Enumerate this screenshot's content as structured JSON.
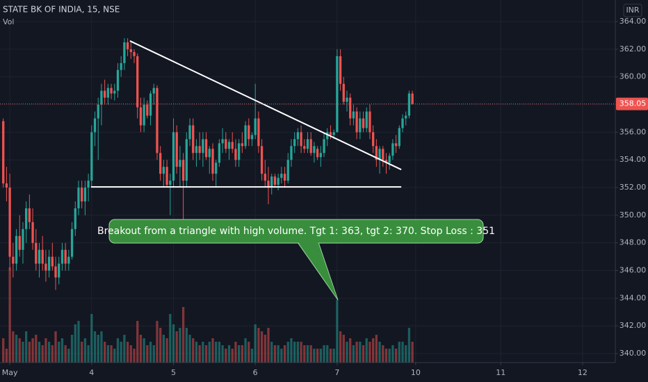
{
  "chart_data": {
    "type": "candlestick",
    "title": "STATE BK OF INDIA, 15, NSE",
    "volume_label": "Vol",
    "currency": "INR",
    "up_color": "#26a69a",
    "down_color": "#ef5350",
    "xlim": [
      -1,
      187
    ],
    "ylim": [
      339.35,
      365.56
    ],
    "xticks": [
      {
        "value": 2,
        "label": "May"
      },
      {
        "value": 27,
        "label": "4"
      },
      {
        "value": 52,
        "label": "5"
      },
      {
        "value": 77,
        "label": "6"
      },
      {
        "value": 102,
        "label": "7"
      },
      {
        "value": 126,
        "label": "10"
      },
      {
        "value": 152,
        "label": "11"
      },
      {
        "value": 177,
        "label": "12"
      }
    ],
    "yticks": [
      {
        "value": 340,
        "label": "340.00"
      },
      {
        "value": 342,
        "label": "342.00"
      },
      {
        "value": 344,
        "label": "344.00"
      },
      {
        "value": 346,
        "label": "346.00"
      },
      {
        "value": 348,
        "label": "348.00"
      },
      {
        "value": 350,
        "label": "350.00"
      },
      {
        "value": 352,
        "label": "352.00"
      },
      {
        "value": 354,
        "label": "354.00"
      },
      {
        "value": 356,
        "label": "356.00"
      },
      {
        "value": 358,
        "label": "358.00"
      },
      {
        "value": 360,
        "label": "360.00"
      },
      {
        "value": 362,
        "label": "362.00"
      },
      {
        "value": 364,
        "label": "364.00"
      }
    ],
    "grid": true,
    "last_price": 358.05,
    "annotation": "Breakout from a triangle with high volume. Tgt 1: 363, tgt 2: 370. Stop Loss : 351",
    "lines": [
      {
        "x": [
          38.7,
          121.6
        ],
        "y": [
          362.6,
          353.3
        ]
      },
      {
        "x": [
          26.8,
          121.6
        ],
        "y": [
          352.05,
          352.05
        ]
      }
    ],
    "candles": [
      [
        356.8,
        357,
        352,
        352.3,
        35
      ],
      [
        352.3,
        353.5,
        351,
        352,
        20
      ],
      [
        352,
        353,
        346,
        347,
        137
      ],
      [
        347,
        348,
        345.5,
        346.5,
        45
      ],
      [
        346.5,
        349,
        346,
        348.5,
        40
      ],
      [
        348.5,
        350,
        347,
        347.5,
        35
      ],
      [
        347.5,
        349.5,
        346.5,
        349,
        30
      ],
      [
        349,
        351,
        348,
        350.5,
        45
      ],
      [
        350.5,
        351.5,
        349,
        349.5,
        30
      ],
      [
        349.5,
        350.5,
        347.5,
        348,
        35
      ],
      [
        348,
        349,
        346,
        346.5,
        40
      ],
      [
        346.5,
        348,
        345.5,
        347.5,
        30
      ],
      [
        347.5,
        348.5,
        346,
        346.5,
        25
      ],
      [
        346.5,
        347.5,
        345.2,
        346,
        35
      ],
      [
        346,
        347.5,
        345.5,
        347,
        30
      ],
      [
        347,
        348,
        346,
        346.3,
        25
      ],
      [
        346.3,
        347,
        344.6,
        345.5,
        45
      ],
      [
        345.5,
        347,
        345,
        346.5,
        30
      ],
      [
        346.5,
        348,
        346,
        347.5,
        35
      ],
      [
        347.5,
        348,
        346,
        346.5,
        25
      ],
      [
        346.5,
        347.5,
        346,
        347,
        20
      ],
      [
        347,
        349.5,
        346.8,
        349,
        40
      ],
      [
        349,
        351,
        348.5,
        350.5,
        55
      ],
      [
        350.5,
        352.5,
        350,
        352,
        60
      ],
      [
        352,
        352.5,
        350.5,
        351,
        30
      ],
      [
        351,
        352.5,
        350,
        352,
        35
      ],
      [
        352,
        353,
        351,
        352.5,
        25
      ],
      [
        352.5,
        356.5,
        352,
        356,
        70
      ],
      [
        356,
        357.5,
        355,
        357,
        45
      ],
      [
        357,
        358.5,
        354,
        358,
        40
      ],
      [
        358,
        359.5,
        356.5,
        359,
        45
      ],
      [
        359,
        359.8,
        358,
        358.5,
        30
      ],
      [
        358.5,
        359.5,
        358,
        359.2,
        25
      ],
      [
        359.2,
        359.5,
        358.4,
        358.8,
        25
      ],
      [
        358.8,
        359.5,
        358.3,
        359,
        20
      ],
      [
        359,
        361,
        358.5,
        360.5,
        35
      ],
      [
        360.5,
        361.5,
        360,
        361,
        30
      ],
      [
        361,
        362.8,
        360.5,
        362.5,
        40
      ],
      [
        362.5,
        362.8,
        361.5,
        362,
        30
      ],
      [
        362,
        362.5,
        361.3,
        361.8,
        25
      ],
      [
        361.8,
        362,
        361,
        361.5,
        20
      ],
      [
        361.5,
        361.7,
        357,
        357.8,
        60
      ],
      [
        357.8,
        358.5,
        356,
        356.5,
        40
      ],
      [
        356.5,
        358.5,
        356,
        358,
        35
      ],
      [
        358,
        358.3,
        357,
        357.2,
        25
      ],
      [
        357.2,
        359,
        356.5,
        358.8,
        30
      ],
      [
        358.8,
        359.5,
        358,
        359.2,
        25
      ],
      [
        359.2,
        359.4,
        354,
        354.5,
        60
      ],
      [
        354.5,
        355,
        352.5,
        353,
        50
      ],
      [
        353,
        354,
        352,
        353.5,
        40
      ],
      [
        353.5,
        354,
        352,
        352.2,
        35
      ],
      [
        352.2,
        353,
        350,
        352.5,
        70
      ],
      [
        352.5,
        357,
        352,
        356,
        55
      ],
      [
        356,
        356.5,
        353,
        353.5,
        45
      ],
      [
        353.5,
        355,
        352,
        354,
        50
      ],
      [
        354,
        354.5,
        348,
        352.5,
        80
      ],
      [
        352.5,
        356,
        352,
        355.5,
        50
      ],
      [
        355.5,
        357,
        355,
        356.5,
        40
      ],
      [
        356.5,
        357,
        354,
        354.5,
        35
      ],
      [
        354.5,
        355.5,
        353.5,
        355,
        30
      ],
      [
        355,
        356,
        354,
        354.5,
        25
      ],
      [
        354.5,
        356,
        353.5,
        355.5,
        30
      ],
      [
        355.5,
        356,
        354,
        354.2,
        25
      ],
      [
        354.2,
        355,
        353,
        354.8,
        30
      ],
      [
        354.8,
        355.2,
        352.5,
        353,
        35
      ],
      [
        353,
        354,
        352,
        353.8,
        30
      ],
      [
        353.8,
        355.5,
        353.5,
        355.2,
        30
      ],
      [
        355.2,
        356.3,
        354.5,
        355.5,
        25
      ],
      [
        355.5,
        356,
        354.5,
        354.8,
        20
      ],
      [
        354.8,
        355.5,
        354,
        355.3,
        25
      ],
      [
        355.3,
        356,
        354.5,
        354.8,
        20
      ],
      [
        354.8,
        355.5,
        353.5,
        354,
        30
      ],
      [
        354,
        355.5,
        353.5,
        355.2,
        25
      ],
      [
        355.2,
        356,
        354.5,
        355,
        25
      ],
      [
        355,
        356.8,
        354.8,
        356.5,
        35
      ],
      [
        356.5,
        357,
        355,
        355.5,
        30
      ],
      [
        355.5,
        356,
        355,
        355.8,
        20
      ],
      [
        355.8,
        359.5,
        355.5,
        357,
        55
      ],
      [
        357,
        357.5,
        354.5,
        355,
        50
      ],
      [
        355,
        355.5,
        352.5,
        353,
        45
      ],
      [
        353,
        354,
        352,
        352.5,
        40
      ],
      [
        352.5,
        353.5,
        350.8,
        352,
        50
      ],
      [
        352,
        353,
        351.5,
        352.8,
        30
      ],
      [
        352.8,
        353,
        352,
        352.2,
        25
      ],
      [
        352.2,
        353,
        351.8,
        352.7,
        25
      ],
      [
        352.7,
        353.5,
        352.3,
        353,
        20
      ],
      [
        353,
        353.5,
        352,
        352.5,
        25
      ],
      [
        352.5,
        354.5,
        352.3,
        354,
        30
      ],
      [
        354,
        355.5,
        353.5,
        355,
        35
      ],
      [
        355,
        356,
        354.5,
        355.5,
        30
      ],
      [
        355.5,
        356.3,
        355,
        356,
        30
      ],
      [
        356,
        356.5,
        354.5,
        355,
        30
      ],
      [
        355,
        355.5,
        354.5,
        354.8,
        25
      ],
      [
        354.8,
        356,
        354.5,
        355.5,
        25
      ],
      [
        355.5,
        356,
        354.3,
        354.5,
        25
      ],
      [
        354.5,
        355.3,
        353.8,
        355,
        20
      ],
      [
        354.8,
        355,
        354,
        354.2,
        20
      ],
      [
        354.2,
        355,
        353.5,
        354.5,
        20
      ],
      [
        354.5,
        356,
        354.2,
        355.5,
        25
      ],
      [
        355.5,
        356.3,
        355,
        356,
        25
      ],
      [
        356,
        356.5,
        355.5,
        355.8,
        20
      ],
      [
        355.8,
        356.2,
        355.5,
        356,
        20
      ],
      [
        356,
        362,
        356,
        361.5,
        90
      ],
      [
        361.5,
        362,
        359,
        359.5,
        45
      ],
      [
        359.5,
        360,
        358,
        358.2,
        40
      ],
      [
        358.2,
        359,
        357.5,
        358.5,
        30
      ],
      [
        358.5,
        358.8,
        356.5,
        357,
        35
      ],
      [
        357,
        358,
        356.5,
        357.5,
        25
      ],
      [
        357.5,
        357.8,
        355.5,
        356,
        30
      ],
      [
        356,
        357.5,
        355.5,
        357,
        30
      ],
      [
        357,
        357.5,
        356,
        356.3,
        25
      ],
      [
        356.3,
        357.8,
        356,
        357.5,
        35
      ],
      [
        357.5,
        358,
        355.5,
        356,
        30
      ],
      [
        356,
        356.5,
        354.5,
        355,
        35
      ],
      [
        355,
        355.5,
        353.5,
        354,
        40
      ],
      [
        354,
        355,
        353,
        354.8,
        30
      ],
      [
        354.8,
        355,
        353.5,
        354,
        25
      ],
      [
        354,
        354.5,
        353,
        353.8,
        20
      ],
      [
        353.8,
        354.5,
        353.3,
        354.3,
        20
      ],
      [
        354.3,
        355.5,
        354,
        355.2,
        25
      ],
      [
        355.2,
        355.8,
        354.5,
        355,
        20
      ],
      [
        355,
        356.5,
        354.8,
        356.3,
        30
      ],
      [
        356.3,
        357.3,
        356,
        357,
        30
      ],
      [
        357,
        357.5,
        356.5,
        357.2,
        25
      ],
      [
        357.2,
        359,
        357,
        358.8,
        50
      ],
      [
        358.8,
        359,
        358,
        358.05,
        30
      ]
    ]
  }
}
